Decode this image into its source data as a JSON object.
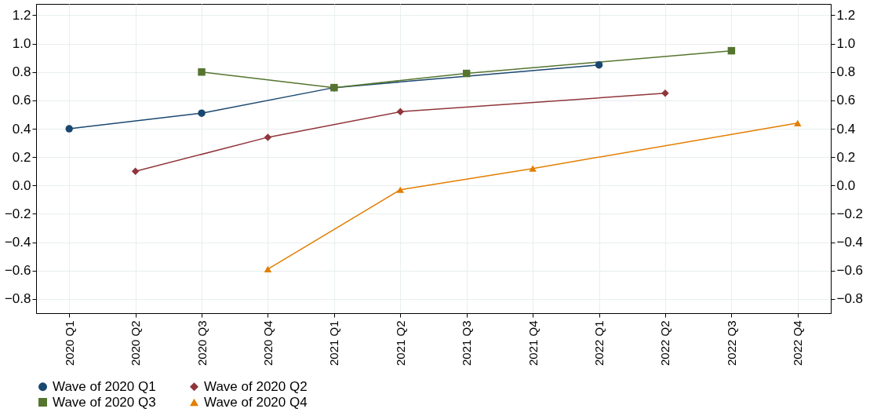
{
  "chart_data": {
    "type": "line",
    "categories": [
      "2020 Q1",
      "2020 Q2",
      "2020 Q3",
      "2020 Q4",
      "2021 Q1",
      "2021 Q2",
      "2021 Q3",
      "2021 Q4",
      "2022 Q1",
      "2022 Q2",
      "2022 Q3",
      "2022 Q4"
    ],
    "series": [
      {
        "name": "Wave of 2020 Q1",
        "color": "#1a476f",
        "marker": "circle",
        "values": [
          0.4,
          null,
          0.51,
          null,
          0.69,
          null,
          null,
          null,
          0.85,
          null,
          null,
          null
        ]
      },
      {
        "name": "Wave of 2020 Q2",
        "color": "#90353b",
        "marker": "diamond",
        "values": [
          null,
          0.1,
          null,
          0.34,
          null,
          0.52,
          null,
          null,
          null,
          0.65,
          null,
          null
        ]
      },
      {
        "name": "Wave of 2020 Q3",
        "color": "#55752f",
        "marker": "square",
        "values": [
          null,
          null,
          0.8,
          null,
          0.69,
          null,
          0.79,
          null,
          null,
          null,
          0.95,
          null
        ]
      },
      {
        "name": "Wave of 2020 Q4",
        "color": "#e37e00",
        "marker": "triangle",
        "values": [
          null,
          null,
          null,
          -0.59,
          null,
          -0.03,
          null,
          0.12,
          null,
          null,
          null,
          0.44
        ]
      }
    ],
    "ylim": [
      -0.9,
      1.28
    ],
    "yticks": [
      {
        "value": -0.8,
        "label": "−0.8"
      },
      {
        "value": -0.6,
        "label": "−0.6"
      },
      {
        "value": -0.4,
        "label": "−0.4"
      },
      {
        "value": -0.2,
        "label": "−0.2"
      },
      {
        "value": 0,
        "label": "0.0"
      },
      {
        "value": 0.2,
        "label": "0.2"
      },
      {
        "value": 0.4,
        "label": "0.4"
      },
      {
        "value": 0.6,
        "label": "0.6"
      },
      {
        "value": 0.8,
        "label": "0.8"
      },
      {
        "value": 1,
        "label": "1.0"
      },
      {
        "value": 1.2,
        "label": "1.2"
      }
    ],
    "y2lim": [
      -0.9,
      1.28
    ],
    "y2ticks": [
      {
        "value": -0.8,
        "label": "−0.8"
      },
      {
        "value": -0.6,
        "label": "−0.6"
      },
      {
        "value": -0.4,
        "label": "−0.4"
      },
      {
        "value": -0.2,
        "label": "−0.2"
      },
      {
        "value": 0,
        "label": "0.0"
      },
      {
        "value": 0.2,
        "label": "0.2"
      },
      {
        "value": 0.4,
        "label": "0.4"
      },
      {
        "value": 0.6,
        "label": "0.6"
      },
      {
        "value": 0.8,
        "label": "0.8"
      },
      {
        "value": 1,
        "label": "1.0"
      },
      {
        "value": 1.2,
        "label": "1.2"
      }
    ],
    "grid": true,
    "legend": "bottom",
    "line_style": "solid"
  }
}
